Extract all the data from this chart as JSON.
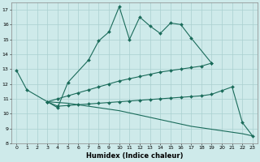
{
  "xlabel": "Humidex (Indice chaleur)",
  "background_color": "#ceeaea",
  "grid_color": "#aacfcf",
  "line_color": "#1a6b5a",
  "xlim": [
    -0.5,
    23.5
  ],
  "ylim": [
    8,
    17.5
  ],
  "yticks": [
    8,
    9,
    10,
    11,
    12,
    13,
    14,
    15,
    16,
    17
  ],
  "xticks": [
    0,
    1,
    2,
    3,
    4,
    5,
    6,
    7,
    8,
    9,
    10,
    11,
    12,
    13,
    14,
    15,
    16,
    17,
    18,
    19,
    20,
    21,
    22,
    23
  ],
  "s1_x": [
    0,
    1,
    3,
    4,
    5,
    7,
    8,
    9,
    10,
    11,
    12,
    13,
    14,
    15,
    16,
    17,
    19
  ],
  "s1_y": [
    12.9,
    11.6,
    10.8,
    10.4,
    12.1,
    13.6,
    14.9,
    15.5,
    17.2,
    15.0,
    16.5,
    15.9,
    15.4,
    16.1,
    16.0,
    15.1,
    13.4
  ],
  "s2_x": [
    3,
    4,
    5,
    6,
    7,
    8,
    9,
    10,
    11,
    12,
    13,
    14,
    15,
    16,
    17,
    18,
    19
  ],
  "s2_y": [
    10.8,
    11.0,
    11.2,
    11.4,
    11.6,
    11.8,
    12.0,
    12.2,
    12.35,
    12.5,
    12.65,
    12.8,
    12.9,
    13.0,
    13.1,
    13.2,
    13.4
  ],
  "s3_x": [
    3,
    4,
    5,
    6,
    7,
    8,
    9,
    10,
    11,
    12,
    13,
    14,
    15,
    16,
    17,
    18,
    19,
    20,
    21,
    22,
    23
  ],
  "s3_y": [
    10.8,
    10.75,
    10.7,
    10.6,
    10.5,
    10.4,
    10.3,
    10.2,
    10.05,
    9.9,
    9.75,
    9.6,
    9.45,
    9.3,
    9.15,
    9.05,
    8.95,
    8.85,
    8.75,
    8.65,
    8.5
  ],
  "s4_x": [
    3,
    4,
    5,
    6,
    7,
    8,
    9,
    10,
    11,
    12,
    13,
    14,
    15,
    16,
    17,
    18,
    19,
    20,
    21,
    22,
    23
  ],
  "s4_y": [
    10.8,
    10.5,
    10.55,
    10.6,
    10.65,
    10.7,
    10.75,
    10.8,
    10.85,
    10.9,
    10.95,
    11.0,
    11.05,
    11.1,
    11.15,
    11.2,
    11.3,
    11.55,
    11.8,
    9.4,
    8.5
  ]
}
